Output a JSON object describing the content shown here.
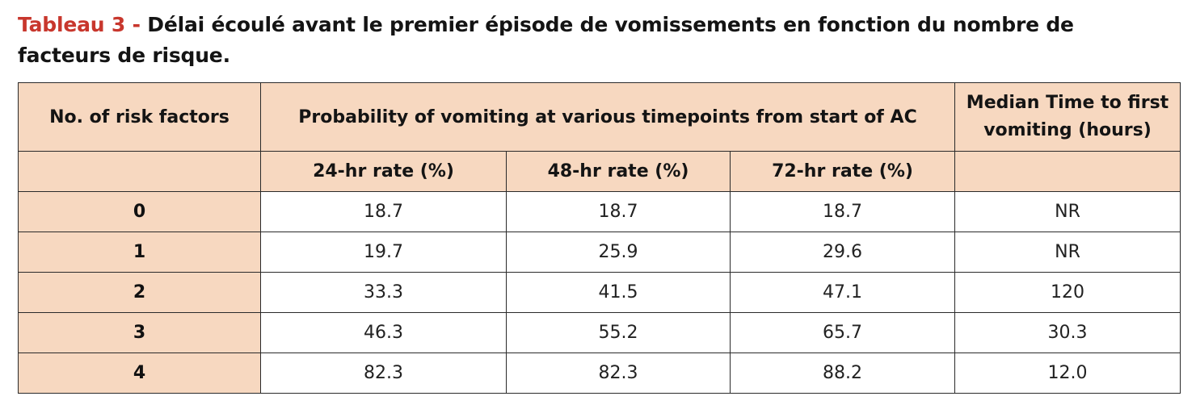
{
  "caption": {
    "label": "Tableau 3 -",
    "text": "Délai écoulé avant le premier épisode de vomissements en fonction du nombre de facteurs de risque."
  },
  "table": {
    "headers": {
      "risk_factors": "No. of risk factors",
      "probability": "Probability of vomiting at various timepoints from start of AC",
      "median": "Median Time to first vomiting (hours)",
      "rate_24": "24-hr rate (%)",
      "rate_48": "48-hr rate (%)",
      "rate_72": "72-hr rate (%)"
    },
    "rows": [
      {
        "factors": "0",
        "r24": "18.7",
        "r48": "18.7",
        "r72": "18.7",
        "median": "NR"
      },
      {
        "factors": "1",
        "r24": "19.7",
        "r48": "25.9",
        "r72": "29.6",
        "median": "NR"
      },
      {
        "factors": "2",
        "r24": "33.3",
        "r48": "41.5",
        "r72": "47.1",
        "median": "120"
      },
      {
        "factors": "3",
        "r24": "46.3",
        "r48": "55.2",
        "r72": "65.7",
        "median": "30.3"
      },
      {
        "factors": "4",
        "r24": "82.3",
        "r48": "82.3",
        "r72": "88.2",
        "median": "12.0"
      }
    ]
  },
  "colors": {
    "caption_label": "#c8372d",
    "header_fill": "#f7d8c0",
    "border": "#2a2a2a"
  }
}
